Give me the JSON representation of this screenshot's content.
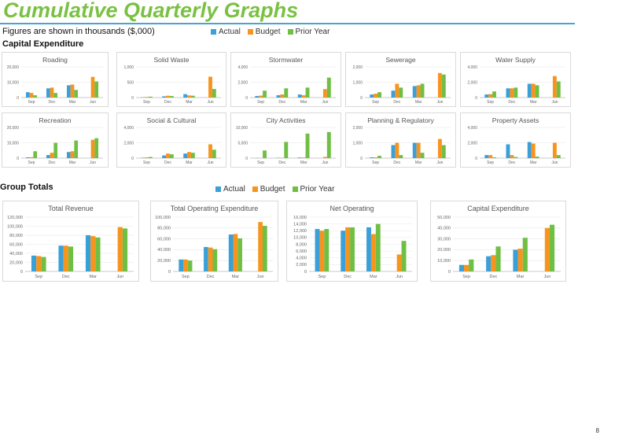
{
  "page": {
    "title": "Cumulative Quarterly Graphs",
    "subtitle": "Figures are shown in thousands ($,000)",
    "section_capex": "Capital Expenditure",
    "section_group": "Group Totals",
    "page_number": "8",
    "legend": [
      {
        "label": "Actual",
        "color": "#3aa0d8"
      },
      {
        "label": "Budget",
        "color": "#f7941d"
      },
      {
        "label": "Prior Year",
        "color": "#70bf45"
      }
    ]
  },
  "chart_data": [
    {
      "type": "bar",
      "title": "Roading",
      "categories": [
        "Sep",
        "Dec",
        "Mar",
        "Jun"
      ],
      "yticks": [
        "0",
        "10,000",
        "20,000"
      ],
      "ylim": [
        0,
        20000
      ],
      "series": [
        {
          "name": "Actual",
          "values": [
            3500,
            6000,
            8000,
            0
          ]
        },
        {
          "name": "Budget",
          "values": [
            3000,
            6500,
            8500,
            13500
          ]
        },
        {
          "name": "Prior Year",
          "values": [
            1500,
            3000,
            5000,
            10500
          ]
        }
      ]
    },
    {
      "type": "bar",
      "title": "Solid Waste",
      "categories": [
        "Sep",
        "Dec",
        "Mar",
        "Jun"
      ],
      "yticks": [
        "0",
        "500",
        "1,000"
      ],
      "ylim": [
        0,
        1000
      ],
      "series": [
        {
          "name": "Actual",
          "values": [
            10,
            40,
            110,
            0
          ]
        },
        {
          "name": "Budget",
          "values": [
            20,
            60,
            70,
            680
          ]
        },
        {
          "name": "Prior Year",
          "values": [
            30,
            50,
            60,
            280
          ]
        }
      ]
    },
    {
      "type": "bar",
      "title": "Stormwater",
      "categories": [
        "Sep",
        "Dec",
        "Mar",
        "Jun"
      ],
      "yticks": [
        "0",
        "2,000",
        "4,000"
      ],
      "ylim": [
        0,
        4000
      ],
      "series": [
        {
          "name": "Actual",
          "values": [
            200,
            300,
            400,
            0
          ]
        },
        {
          "name": "Budget",
          "values": [
            250,
            400,
            300,
            1100
          ]
        },
        {
          "name": "Prior Year",
          "values": [
            900,
            1200,
            1300,
            2600
          ]
        }
      ]
    },
    {
      "type": "bar",
      "title": "Sewerage",
      "categories": [
        "Sep",
        "Dec",
        "Mar",
        "Jun"
      ],
      "yticks": [
        "0",
        "1,000",
        "2,000"
      ],
      "ylim": [
        0,
        2000
      ],
      "series": [
        {
          "name": "Actual",
          "values": [
            200,
            450,
            750,
            0
          ]
        },
        {
          "name": "Budget",
          "values": [
            250,
            900,
            800,
            1600
          ]
        },
        {
          "name": "Prior Year",
          "values": [
            350,
            650,
            900,
            1500
          ]
        }
      ]
    },
    {
      "type": "bar",
      "title": "Water Supply",
      "categories": [
        "Sep",
        "Dec",
        "Mar",
        "Jun"
      ],
      "yticks": [
        "0",
        "2,000",
        "4,000"
      ],
      "ylim": [
        0,
        4000
      ],
      "series": [
        {
          "name": "Actual",
          "values": [
            400,
            1200,
            1800,
            0
          ]
        },
        {
          "name": "Budget",
          "values": [
            450,
            1200,
            1800,
            2800
          ]
        },
        {
          "name": "Prior Year",
          "values": [
            800,
            1300,
            1600,
            2100
          ]
        }
      ]
    },
    {
      "type": "bar",
      "title": "Recreation",
      "categories": [
        "Sep",
        "Dec",
        "Mar",
        "Jun"
      ],
      "yticks": [
        "0",
        "10,000",
        "20,000"
      ],
      "ylim": [
        0,
        20000
      ],
      "series": [
        {
          "name": "Actual",
          "values": [
            500,
            2000,
            4000,
            0
          ]
        },
        {
          "name": "Budget",
          "values": [
            600,
            3500,
            4500,
            12000
          ]
        },
        {
          "name": "Prior Year",
          "values": [
            4500,
            10000,
            11500,
            13000
          ]
        }
      ]
    },
    {
      "type": "bar",
      "title": "Social & Cultural",
      "categories": [
        "Sep",
        "Dec",
        "Mar",
        "Jun"
      ],
      "yticks": [
        "0",
        "2,000",
        "4,000"
      ],
      "ylim": [
        0,
        4000
      ],
      "series": [
        {
          "name": "Actual",
          "values": [
            50,
            350,
            600,
            0
          ]
        },
        {
          "name": "Budget",
          "values": [
            100,
            600,
            800,
            1800
          ]
        },
        {
          "name": "Prior Year",
          "values": [
            150,
            500,
            700,
            1100
          ]
        }
      ]
    },
    {
      "type": "bar",
      "title": "City Activities",
      "categories": [
        "Sep",
        "Dec",
        "Mar",
        "Jun"
      ],
      "yticks": [
        "0",
        "5,000",
        "10,000"
      ],
      "ylim": [
        0,
        10000
      ],
      "series": [
        {
          "name": "Actual",
          "values": [
            50,
            100,
            200,
            0
          ]
        },
        {
          "name": "Budget",
          "values": [
            50,
            100,
            200,
            400
          ]
        },
        {
          "name": "Prior Year",
          "values": [
            2500,
            5300,
            8000,
            8500
          ]
        }
      ]
    },
    {
      "type": "bar",
      "title": "Planning & Regulatory",
      "categories": [
        "Sep",
        "Dec",
        "Mar",
        "Jun"
      ],
      "yticks": [
        "0",
        "1,000",
        "2,000"
      ],
      "ylim": [
        0,
        2000
      ],
      "series": [
        {
          "name": "Actual",
          "values": [
            50,
            850,
            1000,
            0
          ]
        },
        {
          "name": "Budget",
          "values": [
            50,
            1000,
            1000,
            1250
          ]
        },
        {
          "name": "Prior Year",
          "values": [
            150,
            200,
            350,
            850
          ]
        }
      ]
    },
    {
      "type": "bar",
      "title": "Property Assets",
      "categories": [
        "Sep",
        "Dec",
        "Mar",
        "Jun"
      ],
      "yticks": [
        "0",
        "2,000",
        "4,000"
      ],
      "ylim": [
        0,
        4000
      ],
      "series": [
        {
          "name": "Actual",
          "values": [
            400,
            1800,
            2100,
            0
          ]
        },
        {
          "name": "Budget",
          "values": [
            400,
            400,
            1900,
            2000
          ]
        },
        {
          "name": "Prior Year",
          "values": [
            100,
            150,
            200,
            400
          ]
        }
      ]
    },
    {
      "type": "bar",
      "title": "Total Revenue",
      "categories": [
        "Sep",
        "Dec",
        "Mar",
        "Jun"
      ],
      "yticks": [
        "0",
        "20,000",
        "40,000",
        "60,000",
        "80,000",
        "100,000",
        "120,000"
      ],
      "ylim": [
        0,
        120000
      ],
      "series": [
        {
          "name": "Actual",
          "values": [
            35000,
            57000,
            80000,
            0
          ]
        },
        {
          "name": "Budget",
          "values": [
            34000,
            57000,
            78000,
            98000
          ]
        },
        {
          "name": "Prior Year",
          "values": [
            32000,
            55000,
            75000,
            95000
          ]
        }
      ]
    },
    {
      "type": "bar",
      "title": "Total Operating Expenditure",
      "categories": [
        "Sep",
        "Dec",
        "Mar",
        "Jun"
      ],
      "yticks": [
        "0",
        "20,000",
        "40,000",
        "60,000",
        "80,000",
        "100,000"
      ],
      "ylim": [
        0,
        100000
      ],
      "series": [
        {
          "name": "Actual",
          "values": [
            22000,
            45000,
            68000,
            0
          ]
        },
        {
          "name": "Budget",
          "values": [
            22000,
            44000,
            69000,
            91000
          ]
        },
        {
          "name": "Prior Year",
          "values": [
            20000,
            41000,
            61000,
            84000
          ]
        }
      ]
    },
    {
      "type": "bar",
      "title": "Net Operating",
      "categories": [
        "Sep",
        "Dec",
        "Mar",
        "Jun"
      ],
      "yticks": [
        "0",
        "2,000",
        "4,000",
        "6,000",
        "8,000",
        "10,000",
        "12,000",
        "14,000",
        "16,000"
      ],
      "ylim": [
        0,
        16000
      ],
      "series": [
        {
          "name": "Actual",
          "values": [
            12500,
            12000,
            13000,
            0
          ]
        },
        {
          "name": "Budget",
          "values": [
            12000,
            13000,
            11000,
            5000
          ]
        },
        {
          "name": "Prior Year",
          "values": [
            12500,
            13000,
            14000,
            9000
          ]
        }
      ]
    },
    {
      "type": "bar",
      "title": "Capital Expenditure",
      "categories": [
        "Sep",
        "Dec",
        "Mar",
        "Jun"
      ],
      "yticks": [
        "0",
        "10,000",
        "20,000",
        "30,000",
        "40,000",
        "50,000"
      ],
      "ylim": [
        0,
        50000
      ],
      "series": [
        {
          "name": "Actual",
          "values": [
            6000,
            14000,
            20000,
            0
          ]
        },
        {
          "name": "Budget",
          "values": [
            6000,
            15000,
            21000,
            40000
          ]
        },
        {
          "name": "Prior Year",
          "values": [
            11000,
            23000,
            31000,
            43000
          ]
        }
      ]
    }
  ]
}
